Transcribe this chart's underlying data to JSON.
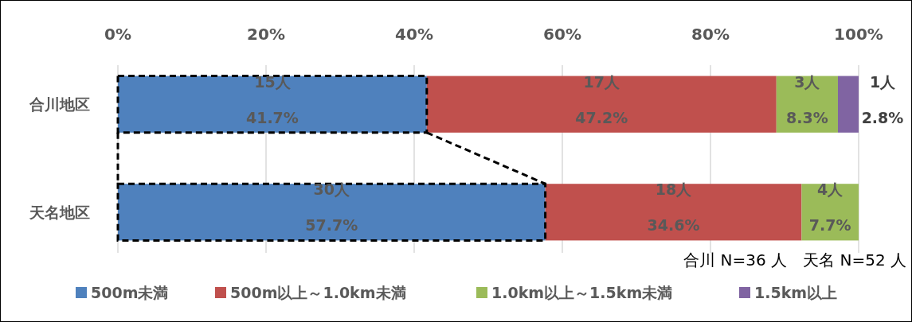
{
  "chart_data": {
    "type": "bar",
    "orientation": "horizontal",
    "stacked": true,
    "categories": [
      "合川地区",
      "天名地区"
    ],
    "series": [
      {
        "name": "500m未満",
        "color": "#4f81bd",
        "values": [
          41.7,
          57.7
        ],
        "value_labels": [
          "15人\n41.7%",
          "30人\n57.7%"
        ]
      },
      {
        "name": "500m以上～1.0km未満",
        "color": "#c0504d",
        "values": [
          47.2,
          34.6
        ],
        "value_labels": [
          "17人\n47.2%",
          "18人\n34.6%"
        ]
      },
      {
        "name": "1.0km以上～1.5km未満",
        "color": "#9bbb59",
        "values": [
          8.3,
          7.7
        ],
        "value_labels": [
          "3人\n8.3%",
          "4人\n7.7%"
        ]
      },
      {
        "name": "1.5km以上",
        "color": "#8064a2",
        "values": [
          2.8,
          null
        ],
        "value_labels": [
          "1人\n2.8%",
          null
        ]
      }
    ],
    "xlim": [
      0,
      100
    ],
    "xticks": [
      {
        "value": 0,
        "label": "0%"
      },
      {
        "value": 20,
        "label": "20%"
      },
      {
        "value": 40,
        "label": "40%"
      },
      {
        "value": 60,
        "label": "60%"
      },
      {
        "value": 80,
        "label": "80%"
      },
      {
        "value": 100,
        "label": "100%"
      }
    ],
    "grid": "x",
    "legend": "bottom",
    "annotations": [
      "合川 N=36 人　天名 N=52 人"
    ]
  }
}
